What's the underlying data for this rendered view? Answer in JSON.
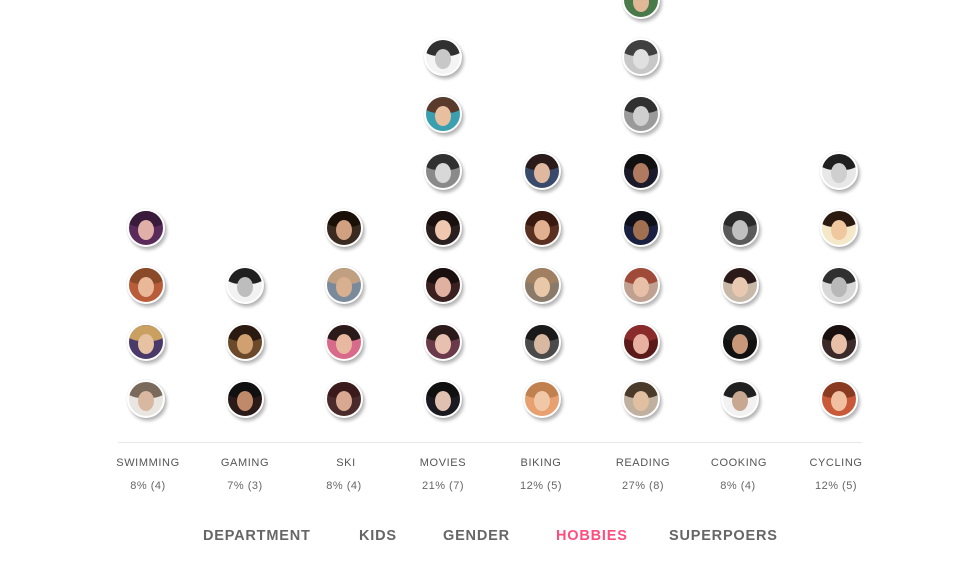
{
  "categories": [
    {
      "id": "swimming",
      "label": "SWIMMING",
      "stat": "8% (4)"
    },
    {
      "id": "gaming",
      "label": "GAMING",
      "stat": "7% (3)"
    },
    {
      "id": "ski",
      "label": "SKI",
      "stat": "8% (4)"
    },
    {
      "id": "movies",
      "label": "MOVIES",
      "stat": "21% (7)"
    },
    {
      "id": "biking",
      "label": "BIKING",
      "stat": "12% (5)"
    },
    {
      "id": "reading",
      "label": "READING",
      "stat": "27% (8)"
    },
    {
      "id": "cooking",
      "label": "COOKING",
      "stat": "8% (4)"
    },
    {
      "id": "cycling",
      "label": "CYCLING",
      "stat": "12% (5)"
    }
  ],
  "avatars": {
    "swimming": [
      {
        "bg": "#e9e6e2",
        "hair": "#7a6a5c",
        "face": "#d8b8a0"
      },
      {
        "bg": "#4a3a6a",
        "hair": "#c9a060",
        "face": "#e6c2a2"
      },
      {
        "bg": "#b85c3a",
        "hair": "#8a4a2a",
        "face": "#e8b898"
      },
      {
        "bg": "#5a2a5a",
        "hair": "#3a1a3a",
        "face": "#e0b0a8"
      }
    ],
    "gaming": [
      {
        "bg": "#2a1a1a",
        "hair": "#101010",
        "face": "#c08a6a"
      },
      {
        "bg": "#6a4a2a",
        "hair": "#2a1a10",
        "face": "#d0a070"
      },
      {
        "bg": "#f2f2f2",
        "hair": "#202020",
        "face": "#bdbdbd"
      }
    ],
    "ski": [
      {
        "bg": "#4a2a2a",
        "hair": "#3a1a1a",
        "face": "#d8a890"
      },
      {
        "bg": "#d86a8a",
        "hair": "#2a1a1a",
        "face": "#e8b8a0"
      },
      {
        "bg": "#7a8a9a",
        "hair": "#c0a080",
        "face": "#d8b090"
      },
      {
        "bg": "#3a2a20",
        "hair": "#1a1008",
        "face": "#d0a080"
      }
    ],
    "movies": [
      {
        "bg": "#1a1a20",
        "hair": "#101010",
        "face": "#e0c0b0"
      },
      {
        "bg": "#6a3a4a",
        "hair": "#2a1a1a",
        "face": "#e8c0b0"
      },
      {
        "bg": "#3a2020",
        "hair": "#1a1010",
        "face": "#e0b0a0"
      },
      {
        "bg": "#2a2020",
        "hair": "#1a1010",
        "face": "#f0c8b0"
      },
      {
        "bg": "#8a8a8a",
        "hair": "#303030",
        "face": "#d8d8d8"
      },
      {
        "bg": "#3aa0b0",
        "hair": "#5a3a2a",
        "face": "#e8c0a0"
      },
      {
        "bg": "#f4f4f4",
        "hair": "#303030",
        "face": "#c8c8c8"
      }
    ],
    "biking": [
      {
        "bg": "#e8a070",
        "hair": "#c08050",
        "face": "#f0c8a8"
      },
      {
        "bg": "#4a4a4a",
        "hair": "#1a1a1a",
        "face": "#d8b8a0"
      },
      {
        "bg": "#8a7a6a",
        "hair": "#a08060",
        "face": "#e8c8a8"
      },
      {
        "bg": "#5a3020",
        "hair": "#3a1a10",
        "face": "#e0b090"
      },
      {
        "bg": "#3a4a6a",
        "hair": "#2a1a1a",
        "face": "#e0b8a0"
      }
    ],
    "reading": [
      {
        "bg": "#c0b0a0",
        "hair": "#4a3a2a",
        "face": "#e0c0a0"
      },
      {
        "bg": "#5a1a1a",
        "hair": "#8a2a2a",
        "face": "#e8b0a0"
      },
      {
        "bg": "#c0a090",
        "hair": "#a04a3a",
        "face": "#e8c0a8"
      },
      {
        "bg": "#1a2040",
        "hair": "#101018",
        "face": "#a07050"
      },
      {
        "bg": "#1a1a2a",
        "hair": "#101010",
        "face": "#b07a60"
      },
      {
        "bg": "#9a9a9a",
        "hair": "#303030",
        "face": "#cfcfcf"
      },
      {
        "bg": "#c8c8c8",
        "hair": "#404040",
        "face": "#e0e0e0"
      },
      {
        "bg": "#4a7a4a",
        "hair": "#3a2a1a",
        "face": "#e0b898"
      }
    ],
    "cooking": [
      {
        "bg": "#f2f2f2",
        "hair": "#202020",
        "face": "#c8a890"
      },
      {
        "bg": "#101010",
        "hair": "#1a1a1a",
        "face": "#c89878"
      },
      {
        "bg": "#c8b8a8",
        "hair": "#2a1a1a",
        "face": "#e8c8b0"
      },
      {
        "bg": "#5a5a5a",
        "hair": "#2a2a2a",
        "face": "#c0c0c0"
      }
    ],
    "cycling": [
      {
        "bg": "#c85a3a",
        "hair": "#8a3a20",
        "face": "#f0c0a0"
      },
      {
        "bg": "#3a2a2a",
        "hair": "#1a1010",
        "face": "#e8c0a8"
      },
      {
        "bg": "#d8d8d8",
        "hair": "#303030",
        "face": "#b8b8b8"
      },
      {
        "bg": "#f4e8c8",
        "hair": "#2a1a10",
        "face": "#f0c8a0"
      },
      {
        "bg": "#e8e8e8",
        "hair": "#202020",
        "face": "#cfcfcf"
      }
    ]
  },
  "tabs": [
    {
      "id": "department",
      "label": "DEPARTMENT",
      "active": false
    },
    {
      "id": "kids",
      "label": "KIDS",
      "active": false
    },
    {
      "id": "gender",
      "label": "GENDER",
      "active": false
    },
    {
      "id": "hobbies",
      "label": "HOBBIES",
      "active": true
    },
    {
      "id": "superpoers",
      "label": "SUPERPOERS",
      "active": false
    }
  ],
  "colors": {
    "active_tab": "#ff4d7e",
    "tab": "#666666",
    "label": "#555555",
    "divider": "#e6e6e6"
  }
}
